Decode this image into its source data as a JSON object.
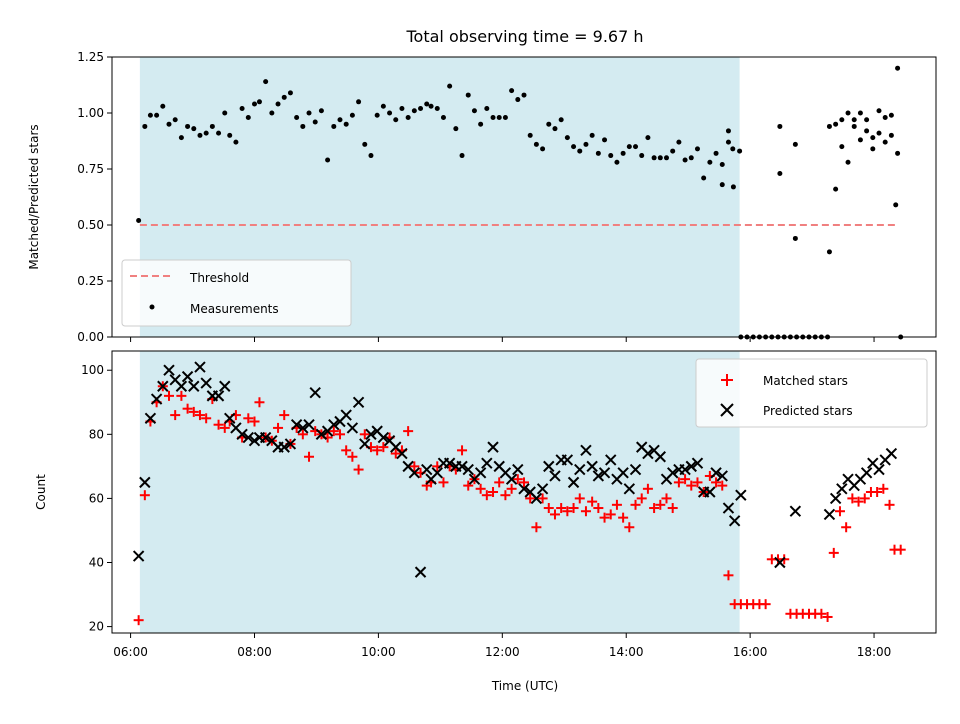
{
  "title": "Total observing time = 9.67 h",
  "colors": {
    "shade": "#d4ebf1",
    "threshold": "#f08080",
    "measure": "#000000",
    "matched": "#ff0000",
    "predicted": "#000000"
  },
  "chart_data": [
    {
      "type": "scatter",
      "ylabel": "Matched/Predicted stars",
      "xlim": [
        5.7,
        19.0
      ],
      "ylim": [
        0.0,
        1.25
      ],
      "yticks": [
        "0.00",
        "0.25",
        "0.50",
        "0.75",
        "1.00",
        "1.25"
      ],
      "yticks_values": [
        0,
        0.25,
        0.5,
        0.75,
        1.0,
        1.25
      ],
      "shaded_span": [
        6.15,
        15.83
      ],
      "threshold": {
        "name": "Threshold",
        "value": 0.5,
        "x_range": [
          6.15,
          18.4
        ]
      },
      "legend": {
        "placement": "lower-left",
        "entries": [
          "Threshold",
          "Measurements"
        ]
      },
      "series": [
        {
          "name": "Measurements",
          "x": [
            6.13,
            6.23,
            6.32,
            6.42,
            6.52,
            6.62,
            6.72,
            6.82,
            6.92,
            7.02,
            7.12,
            7.22,
            7.32,
            7.42,
            7.52,
            7.6,
            7.7,
            7.8,
            7.9,
            8.0,
            8.08,
            8.18,
            8.28,
            8.38,
            8.48,
            8.58,
            8.68,
            8.78,
            8.88,
            8.98,
            9.08,
            9.18,
            9.28,
            9.38,
            9.48,
            9.58,
            9.68,
            9.78,
            9.88,
            9.98,
            10.08,
            10.18,
            10.28,
            10.38,
            10.48,
            10.58,
            10.68,
            10.78,
            10.85,
            10.95,
            11.05,
            11.15,
            11.25,
            11.35,
            11.45,
            11.55,
            11.65,
            11.75,
            11.85,
            11.95,
            12.05,
            12.15,
            12.25,
            12.35,
            12.45,
            12.55,
            12.65,
            12.75,
            12.85,
            12.95,
            13.05,
            13.15,
            13.25,
            13.35,
            13.45,
            13.55,
            13.65,
            13.75,
            13.85,
            13.95,
            14.05,
            14.15,
            14.25,
            14.35,
            14.45,
            14.55,
            14.65,
            14.75,
            14.85,
            14.95,
            15.05,
            15.15,
            15.25,
            15.35,
            15.45,
            15.55,
            15.65,
            15.72,
            15.83,
            16.48,
            16.73,
            17.28,
            17.38,
            17.48,
            17.58,
            17.68,
            17.78,
            17.88,
            17.98,
            18.08,
            18.18,
            18.28,
            18.38
          ],
          "values": [
            0.52,
            0.94,
            0.99,
            0.99,
            1.03,
            0.95,
            0.97,
            0.89,
            0.94,
            0.93,
            0.9,
            0.91,
            0.94,
            0.91,
            1.0,
            0.9,
            0.87,
            1.02,
            0.98,
            1.04,
            1.05,
            1.14,
            1.0,
            1.04,
            1.07,
            1.09,
            0.98,
            0.94,
            1.0,
            0.96,
            1.01,
            0.79,
            0.94,
            0.97,
            0.95,
            0.99,
            1.05,
            0.86,
            0.81,
            0.99,
            1.03,
            1.0,
            0.97,
            1.02,
            0.98,
            1.01,
            1.02,
            1.04,
            1.03,
            1.02,
            0.98,
            1.12,
            0.93,
            0.81,
            1.08,
            1.01,
            0.95,
            1.02,
            0.98,
            0.98,
            0.98,
            1.1,
            1.06,
            1.08,
            0.9,
            0.86,
            0.84,
            0.95,
            0.93,
            0.97,
            0.89,
            0.85,
            0.83,
            0.86,
            0.9,
            0.82,
            0.88,
            0.81,
            0.78,
            0.82,
            0.85,
            0.85,
            0.81,
            0.89,
            0.8,
            0.8,
            0.8,
            0.83,
            0.87,
            0.79,
            0.8,
            0.84,
            0.71,
            0.78,
            0.82,
            0.77,
            0.87,
            0.84,
            0.83,
            0.94,
            0.86,
            0.94,
            0.95,
            0.97,
            1.0,
            0.94,
            1.0,
            0.97,
            0.89,
            1.01,
            0.98,
            0.99,
            1.2
          ],
          "x2": [
            15.55,
            15.65,
            15.73,
            16.48,
            16.73,
            17.28,
            17.38,
            17.48,
            17.58,
            17.68,
            17.78,
            17.88,
            17.98,
            18.08,
            18.18,
            18.28,
            18.38
          ],
          "values2": [
            0.68,
            0.92,
            0.67,
            0.73,
            0.44,
            0.38,
            0.66,
            0.85,
            0.78,
            0.97,
            0.88,
            0.92,
            0.84,
            0.91,
            0.87,
            0.9,
            0.82
          ],
          "zeros_x": [
            15.85,
            15.95,
            16.05,
            16.15,
            16.25,
            16.35,
            16.45,
            16.55,
            16.65,
            16.75,
            16.85,
            16.95,
            17.05,
            17.15,
            17.25,
            18.43
          ],
          "extra_x": [
            18.35
          ],
          "extra_values": [
            0.59
          ]
        }
      ]
    },
    {
      "type": "scatter",
      "ylabel": "Count",
      "xlabel": "Time (UTC)",
      "xlim": [
        5.7,
        19.0
      ],
      "ylim": [
        18,
        106
      ],
      "xticks": [
        "06:00",
        "08:00",
        "10:00",
        "12:00",
        "14:00",
        "16:00",
        "18:00"
      ],
      "xticks_values": [
        6,
        8,
        10,
        12,
        14,
        16,
        18
      ],
      "yticks": [
        "20",
        "40",
        "60",
        "80",
        "100"
      ],
      "yticks_values": [
        20,
        40,
        60,
        80,
        100
      ],
      "shaded_span": [
        6.15,
        15.83
      ],
      "legend": {
        "placement": "top-right",
        "entries": [
          "Matched stars",
          "Predicted stars"
        ]
      },
      "series": [
        {
          "name": "Matched stars",
          "x": [
            6.13,
            6.23,
            6.32,
            6.42,
            6.52,
            6.62,
            6.72,
            6.82,
            6.92,
            7.02,
            7.12,
            7.22,
            7.32,
            7.42,
            7.52,
            7.6,
            7.7,
            7.8,
            7.9,
            8.0,
            8.08,
            8.18,
            8.28,
            8.38,
            8.48,
            8.58,
            8.68,
            8.78,
            8.88,
            8.98,
            9.08,
            9.18,
            9.28,
            9.38,
            9.48,
            9.58,
            9.68,
            9.78,
            9.88,
            9.98,
            10.08,
            10.18,
            10.28,
            10.38,
            10.48,
            10.58,
            10.68,
            10.78,
            10.85,
            10.95,
            11.05,
            11.15,
            11.25,
            11.35,
            11.45,
            11.55,
            11.65,
            11.75,
            11.85,
            11.95,
            12.05,
            12.15,
            12.25,
            12.35,
            12.45,
            12.55,
            12.65,
            12.75,
            12.85,
            12.95,
            13.05,
            13.15,
            13.25,
            13.35,
            13.45,
            13.55,
            13.65,
            13.75,
            13.85,
            13.95,
            14.05,
            14.15,
            14.25,
            14.35,
            14.45,
            14.55,
            14.65,
            14.75,
            14.85,
            14.95,
            15.05,
            15.15,
            15.25,
            15.35,
            15.45,
            15.55,
            15.65,
            15.75,
            15.85,
            15.95,
            16.05,
            16.15,
            16.25,
            16.35,
            16.45,
            16.55,
            16.65,
            16.75,
            16.85,
            16.95,
            17.05,
            17.15,
            17.25,
            17.35,
            17.45,
            17.55,
            17.65,
            17.75,
            17.85,
            17.95,
            18.05,
            18.15,
            18.25,
            18.33,
            18.43
          ],
          "values": [
            22,
            61,
            84,
            90,
            95,
            92,
            86,
            92,
            88,
            87,
            86,
            85,
            91,
            83,
            82,
            84,
            86,
            79,
            85,
            84,
            90,
            79,
            78,
            82,
            86,
            77,
            82,
            80,
            73,
            81,
            80,
            79,
            81,
            80,
            75,
            73,
            69,
            80,
            76,
            75,
            76,
            79,
            74,
            75,
            81,
            70,
            68,
            64,
            65,
            70,
            65,
            70,
            69,
            75,
            64,
            66,
            63,
            61,
            62,
            65,
            61,
            63,
            66,
            65,
            60,
            51,
            60,
            57,
            55,
            57,
            56,
            57,
            60,
            56,
            59,
            57,
            54,
            55,
            58,
            54,
            51,
            58,
            60,
            63,
            57,
            58,
            60,
            57,
            65,
            66,
            64,
            65,
            62,
            67,
            65,
            64,
            36,
            27,
            27,
            27,
            27,
            27,
            27,
            41,
            41,
            41,
            24,
            24,
            24,
            24,
            24,
            24,
            23,
            43,
            56,
            51,
            60,
            59,
            60,
            62,
            62,
            63,
            58,
            44,
            44
          ]
        },
        {
          "name": "Predicted stars",
          "x": [
            6.13,
            6.23,
            6.32,
            6.42,
            6.52,
            6.62,
            6.72,
            6.82,
            6.92,
            7.02,
            7.12,
            7.22,
            7.32,
            7.42,
            7.52,
            7.6,
            7.7,
            7.8,
            7.9,
            8.0,
            8.08,
            8.18,
            8.28,
            8.38,
            8.48,
            8.58,
            8.68,
            8.78,
            8.88,
            8.98,
            9.08,
            9.18,
            9.28,
            9.38,
            9.48,
            9.58,
            9.68,
            9.78,
            9.88,
            9.98,
            10.08,
            10.18,
            10.28,
            10.38,
            10.48,
            10.58,
            10.68,
            10.78,
            10.85,
            10.95,
            11.05,
            11.15,
            11.25,
            11.35,
            11.45,
            11.55,
            11.65,
            11.75,
            11.85,
            11.95,
            12.05,
            12.15,
            12.25,
            12.35,
            12.45,
            12.55,
            12.65,
            12.75,
            12.85,
            12.95,
            13.05,
            13.15,
            13.25,
            13.35,
            13.45,
            13.55,
            13.65,
            13.75,
            13.85,
            13.95,
            14.05,
            14.15,
            14.25,
            14.35,
            14.45,
            14.55,
            14.65,
            14.75,
            14.85,
            14.95,
            15.05,
            15.15,
            15.25,
            15.35,
            15.45,
            15.55,
            15.65,
            15.75,
            15.85,
            16.48,
            16.73,
            17.28,
            17.38,
            17.48,
            17.58,
            17.68,
            17.78,
            17.88,
            17.98,
            18.08,
            18.18,
            18.28
          ],
          "values": [
            42,
            65,
            85,
            91,
            95,
            100,
            97,
            95,
            98,
            95,
            101,
            96,
            92,
            92,
            95,
            85,
            82,
            80,
            79,
            78,
            79,
            79,
            78,
            76,
            76,
            77,
            83,
            82,
            83,
            93,
            80,
            81,
            83,
            84,
            86,
            82,
            90,
            77,
            80,
            81,
            79,
            78,
            76,
            74,
            70,
            68,
            37,
            69,
            66,
            68,
            71,
            71,
            70,
            70,
            69,
            66,
            68,
            71,
            76,
            70,
            68,
            66,
            69,
            63,
            62,
            60,
            63,
            70,
            67,
            72,
            72,
            65,
            69,
            75,
            70,
            67,
            68,
            72,
            66,
            68,
            63,
            69,
            76,
            74,
            75,
            73,
            66,
            68,
            69,
            69,
            70,
            71,
            62,
            62,
            68,
            67,
            57,
            53,
            61,
            40,
            56,
            55,
            60,
            63,
            66,
            64,
            66,
            68,
            71,
            69,
            72,
            74
          ]
        }
      ]
    }
  ]
}
